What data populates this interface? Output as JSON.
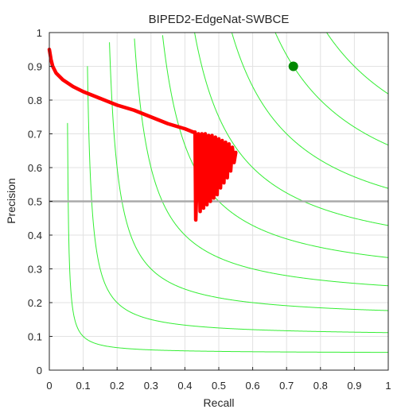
{
  "chart_data": {
    "type": "line",
    "title": "BIPED2-EdgeNat-SWBCE",
    "xlabel": "Recall",
    "ylabel": "Precision",
    "xlim": [
      0,
      1
    ],
    "ylim": [
      0,
      1
    ],
    "grid": true,
    "x_ticks": [
      "0",
      "0.1",
      "0.2",
      "0.3",
      "0.4",
      "0.5",
      "0.6",
      "0.7",
      "0.8",
      "0.9",
      "1"
    ],
    "y_ticks": [
      "0",
      "0.1",
      "0.2",
      "0.3",
      "0.4",
      "0.5",
      "0.6",
      "0.7",
      "0.8",
      "0.9",
      "1"
    ],
    "iso_f_levels": [
      0.1,
      0.2,
      0.3,
      0.4,
      0.5,
      0.6,
      0.7,
      0.8,
      0.9
    ],
    "iso_f_color": "#33ee33",
    "baseline": {
      "y": 0.5,
      "color": "#aaaaaa"
    },
    "series": [
      {
        "color": "#ff0000",
        "smooth_part": {
          "x": [
            0.0,
            0.005,
            0.01,
            0.02,
            0.04,
            0.07,
            0.1,
            0.15,
            0.2,
            0.25,
            0.3,
            0.35,
            0.4,
            0.425
          ],
          "y": [
            0.95,
            0.92,
            0.9,
            0.88,
            0.86,
            0.84,
            0.825,
            0.805,
            0.785,
            0.77,
            0.75,
            0.73,
            0.715,
            0.705
          ]
        },
        "oscillating_part": {
          "peaks": [
            [
              0.43,
              0.705
            ],
            [
              0.44,
              0.7
            ],
            [
              0.45,
              0.7
            ],
            [
              0.46,
              0.7
            ],
            [
              0.47,
              0.695
            ],
            [
              0.48,
              0.695
            ],
            [
              0.49,
              0.69
            ],
            [
              0.5,
              0.685
            ],
            [
              0.51,
              0.68
            ],
            [
              0.52,
              0.675
            ],
            [
              0.53,
              0.67
            ],
            [
              0.54,
              0.66
            ],
            [
              0.55,
              0.645
            ]
          ],
          "troughs": [
            [
              0.432,
              0.445
            ],
            [
              0.445,
              0.47
            ],
            [
              0.455,
              0.48
            ],
            [
              0.465,
              0.49
            ],
            [
              0.475,
              0.5
            ],
            [
              0.485,
              0.51
            ],
            [
              0.495,
              0.52
            ],
            [
              0.505,
              0.54
            ],
            [
              0.515,
              0.555
            ],
            [
              0.525,
              0.57
            ],
            [
              0.535,
              0.59
            ],
            [
              0.545,
              0.615
            ]
          ]
        }
      }
    ],
    "ods_point": {
      "x": 0.72,
      "y": 0.9,
      "color": "#008800"
    }
  }
}
